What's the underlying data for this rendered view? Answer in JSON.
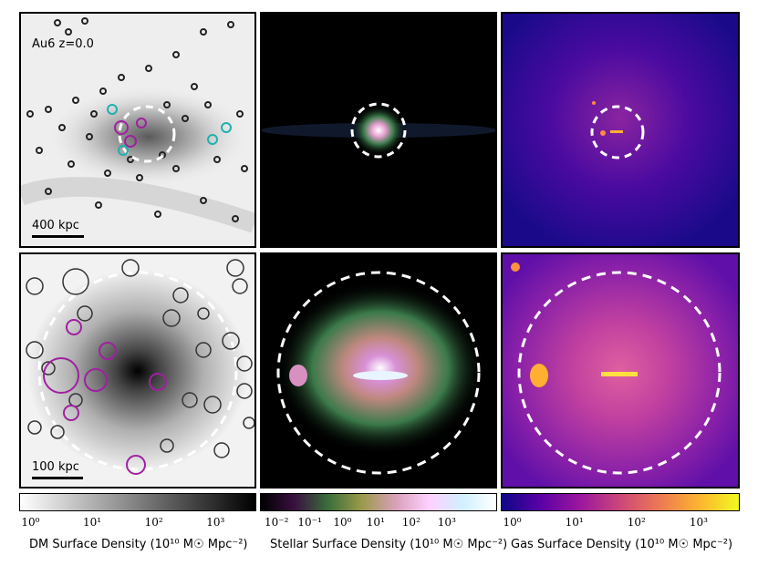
{
  "panel_top_left": {
    "label": "Au6 z=0.0",
    "scale": "400 kpc"
  },
  "panel_bottom_left": {
    "scale": "100 kpc"
  },
  "colorbars": [
    {
      "name": "dm",
      "caption": "DM Surface Density (10¹⁰ M☉ Mpc⁻²)",
      "ticks": [
        "10⁰",
        "10¹",
        "10²",
        "10³"
      ],
      "colors": [
        "#ffffff",
        "#000000"
      ]
    },
    {
      "name": "stellar",
      "caption": "Stellar Surface Density (10¹⁰ M☉ Mpc⁻²)",
      "ticks": [
        "10⁻²",
        "10⁻¹",
        "10⁰",
        "10¹",
        "10²",
        "10³"
      ],
      "colors": [
        "#000000",
        "#3a1040",
        "#3b6e3a",
        "#9a9a4a",
        "#d8a0b8",
        "#ffd0ff",
        "#d0f0ff",
        "#ffffff"
      ]
    },
    {
      "name": "gas",
      "caption": "Gas Surface Density (10¹⁰ M☉ Mpc⁻²)",
      "ticks": [
        "10⁰",
        "10¹",
        "10²",
        "10³"
      ],
      "colors": [
        "#0d0887",
        "#5c01a6",
        "#9c179e",
        "#cc4778",
        "#ed7953",
        "#fdb42f",
        "#f0f921"
      ]
    }
  ]
}
